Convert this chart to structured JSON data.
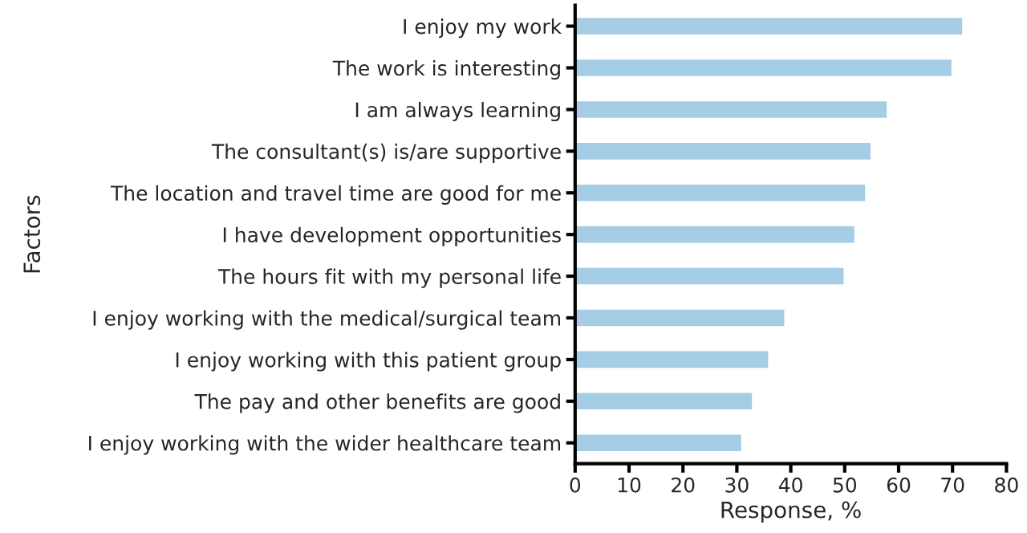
{
  "chart_data": {
    "type": "bar",
    "orientation": "horizontal",
    "xlabel": "Response, %",
    "ylabel": "Factors",
    "categories": [
      "I enjoy my work",
      "The work is interesting",
      "I am always learning",
      "The consultant(s) is/are supportive",
      "The location and travel time are good for me",
      "I have development opportunities",
      "The hours fit with my personal life",
      "I enjoy working with the medical/surgical team",
      "I enjoy working with this patient group",
      "The pay and other benefits are good",
      "I enjoy working with the wider healthcare team"
    ],
    "values": [
      72,
      70,
      58,
      55,
      54,
      52,
      50,
      39,
      36,
      33,
      31
    ],
    "color": "#a6cde6",
    "xlim": [
      0,
      80
    ],
    "xticks": [
      0,
      10,
      20,
      30,
      40,
      50,
      60,
      70,
      80
    ],
    "grid": false
  }
}
